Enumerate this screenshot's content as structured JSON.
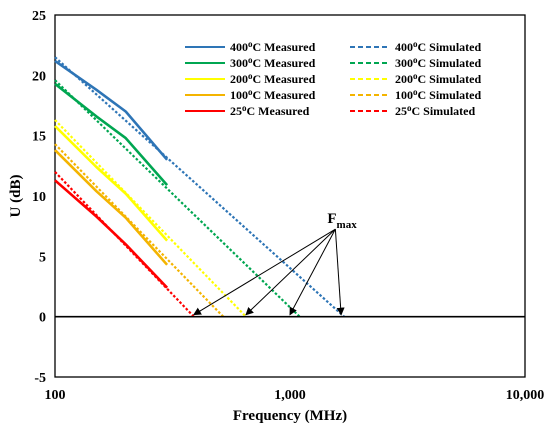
{
  "chart_data": {
    "type": "line",
    "title": "",
    "xlabel": "Frequency (MHz)",
    "ylabel": "U (dB)",
    "xscale": "log",
    "xlim": [
      100,
      10000
    ],
    "ylim": [
      -5,
      25
    ],
    "x_ticks": [
      100,
      1000,
      10000
    ],
    "x_tick_labels": [
      "100",
      "1,000",
      "10,000"
    ],
    "y_ticks": [
      -5,
      0,
      5,
      10,
      15,
      20,
      25
    ],
    "y_tick_labels": [
      "-5",
      "0",
      "5",
      "10",
      "15",
      "20",
      "25"
    ],
    "grid": false,
    "legend_position": "top-right",
    "series": [
      {
        "name": "400",
        "label_suffix": "C Measured",
        "style": "solid",
        "color": "#2E75B6",
        "x": [
          100,
          150,
          200,
          300
        ],
        "y": [
          21.2,
          18.8,
          17.0,
          13.0
        ]
      },
      {
        "name": "300",
        "label_suffix": "C Measured",
        "style": "solid",
        "color": "#00A651",
        "x": [
          100,
          150,
          200,
          300
        ],
        "y": [
          19.3,
          16.6,
          14.8,
          10.9
        ]
      },
      {
        "name": "200",
        "label_suffix": "C Measured",
        "style": "solid",
        "color": "#FFFF00",
        "x": [
          100,
          150,
          200,
          300
        ],
        "y": [
          15.8,
          12.4,
          10.2,
          6.3
        ]
      },
      {
        "name": "100",
        "label_suffix": "C Measured",
        "style": "solid",
        "color": "#F4B400",
        "x": [
          100,
          150,
          200,
          300
        ],
        "y": [
          13.8,
          10.4,
          8.2,
          4.3
        ]
      },
      {
        "name": "25",
        "label_suffix": "C Measured",
        "style": "solid",
        "color": "#FF0000",
        "x": [
          100,
          150,
          200,
          300
        ],
        "y": [
          11.3,
          8.3,
          6.0,
          2.4
        ]
      },
      {
        "name": "400",
        "label_suffix": "C Simulated",
        "style": "dashed",
        "color": "#2E75B6",
        "x": [
          100,
          1700
        ],
        "y": [
          21.5,
          0
        ]
      },
      {
        "name": "300",
        "label_suffix": "C Simulated",
        "style": "dashed",
        "color": "#00A651",
        "x": [
          100,
          1100
        ],
        "y": [
          19.6,
          0
        ]
      },
      {
        "name": "200",
        "label_suffix": "C Simulated",
        "style": "dashed",
        "color": "#FFFF00",
        "x": [
          100,
          650
        ],
        "y": [
          16.3,
          0
        ]
      },
      {
        "name": "100",
        "label_suffix": "C Simulated",
        "style": "dashed",
        "color": "#F4B400",
        "x": [
          100,
          520
        ],
        "y": [
          14.3,
          0
        ]
      },
      {
        "name": "25",
        "label_suffix": "C Simulated",
        "style": "dashed",
        "color": "#FF0000",
        "x": [
          100,
          390
        ],
        "y": [
          12.0,
          0
        ]
      }
    ],
    "annotation": {
      "text_main": "F",
      "text_sub": "max",
      "anchor": {
        "x": 1500,
        "y": 7.5
      },
      "targets": [
        {
          "x": 390,
          "y": 0
        },
        {
          "x": 650,
          "y": 0
        },
        {
          "x": 1000,
          "y": 0
        },
        {
          "x": 1650,
          "y": 0
        }
      ]
    }
  }
}
